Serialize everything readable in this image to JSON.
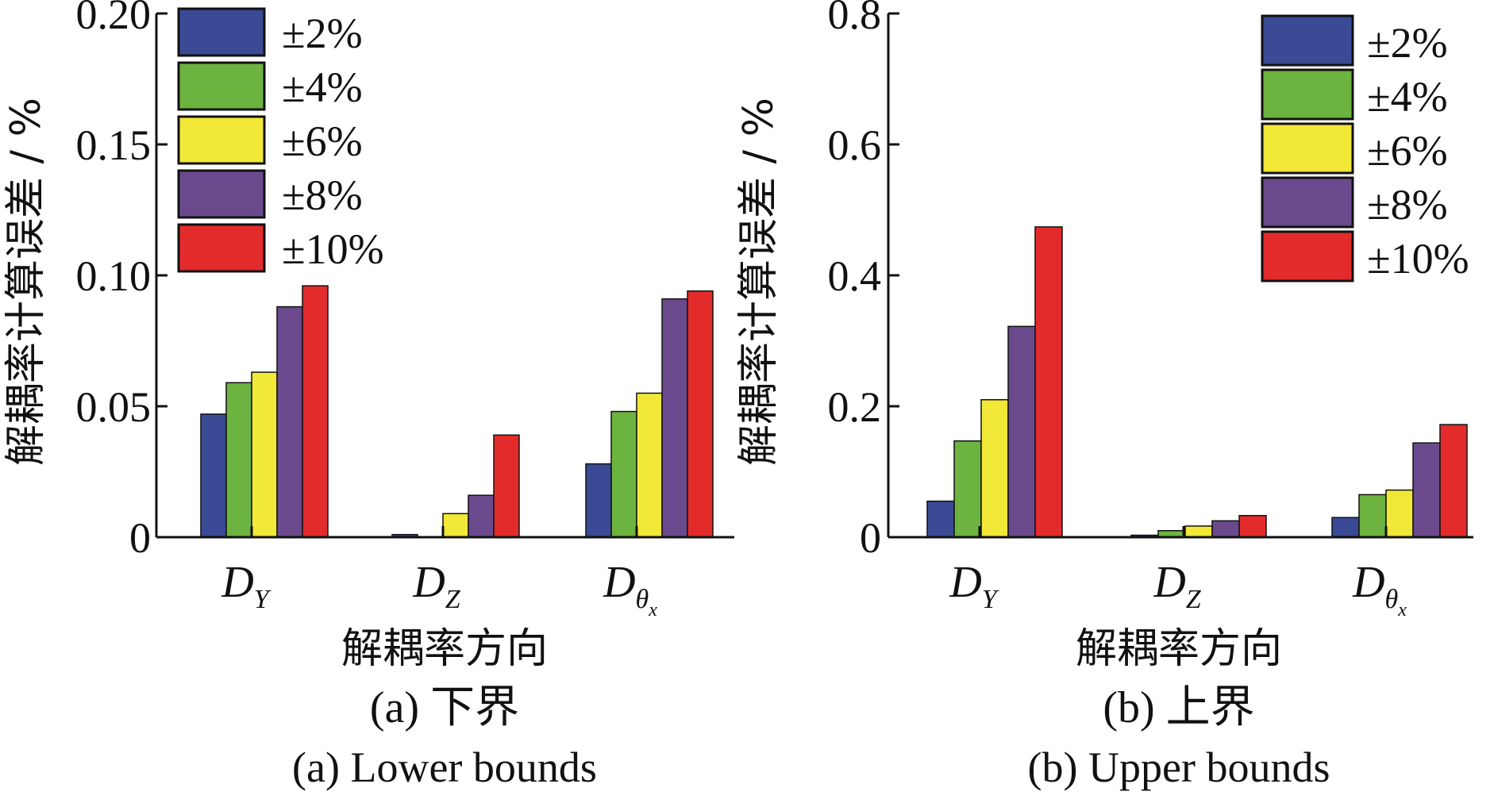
{
  "chart_data": [
    {
      "type": "bar",
      "panel": "a",
      "categories": [
        "D_Y",
        "D_Z",
        "D_θx"
      ],
      "category_labels": [
        {
          "main": "D",
          "sub": "Y",
          "subsub": ""
        },
        {
          "main": "D",
          "sub": "Z",
          "subsub": ""
        },
        {
          "main": "D",
          "sub": "θ",
          "subsub": "x"
        }
      ],
      "series": [
        {
          "name": "±2%",
          "color": "#3a4a94",
          "values": [
            0.047,
            0.001,
            0.028
          ]
        },
        {
          "name": "±4%",
          "color": "#6cb33f",
          "values": [
            0.059,
            0.0,
            0.048
          ]
        },
        {
          "name": "±6%",
          "color": "#f2e838",
          "values": [
            0.063,
            0.009,
            0.055
          ]
        },
        {
          "name": "±8%",
          "color": "#6a4a8c",
          "values": [
            0.088,
            0.016,
            0.091
          ]
        },
        {
          "name": "±10%",
          "color": "#e32b2b",
          "values": [
            0.096,
            0.039,
            0.094
          ]
        }
      ],
      "ylabel": "解耦率计算误差 / %",
      "xlabel": "解耦率方向",
      "ylim": [
        0,
        0.2
      ],
      "yticks": [
        0,
        0.05,
        0.1,
        0.15,
        0.2
      ],
      "ytick_labels": [
        "0",
        "0.05",
        "0.10",
        "0.15",
        "0.20"
      ],
      "legend_position": "top-left",
      "grid": false,
      "caption_cn": "(a) 下界",
      "caption_en": "(a) Lower bounds"
    },
    {
      "type": "bar",
      "panel": "b",
      "categories": [
        "D_Y",
        "D_Z",
        "D_θx"
      ],
      "category_labels": [
        {
          "main": "D",
          "sub": "Y",
          "subsub": ""
        },
        {
          "main": "D",
          "sub": "Z",
          "subsub": ""
        },
        {
          "main": "D",
          "sub": "θ",
          "subsub": "x"
        }
      ],
      "series": [
        {
          "name": "±2%",
          "color": "#3a4a94",
          "values": [
            0.055,
            0.003,
            0.03
          ]
        },
        {
          "name": "±4%",
          "color": "#6cb33f",
          "values": [
            0.147,
            0.01,
            0.065
          ]
        },
        {
          "name": "±6%",
          "color": "#f2e838",
          "values": [
            0.21,
            0.017,
            0.072
          ]
        },
        {
          "name": "±8%",
          "color": "#6a4a8c",
          "values": [
            0.322,
            0.025,
            0.144
          ]
        },
        {
          "name": "±10%",
          "color": "#e32b2b",
          "values": [
            0.474,
            0.033,
            0.172
          ]
        }
      ],
      "ylabel": "解耦率计算误差 / %",
      "xlabel": "解耦率方向",
      "ylim": [
        0,
        0.8
      ],
      "yticks": [
        0,
        0.2,
        0.4,
        0.6,
        0.8
      ],
      "ytick_labels": [
        "0",
        "0.2",
        "0.4",
        "0.6",
        "0.8"
      ],
      "legend_position": "top-right",
      "grid": false,
      "caption_cn": "(b) 上界",
      "caption_en": "(b) Upper bounds"
    }
  ]
}
